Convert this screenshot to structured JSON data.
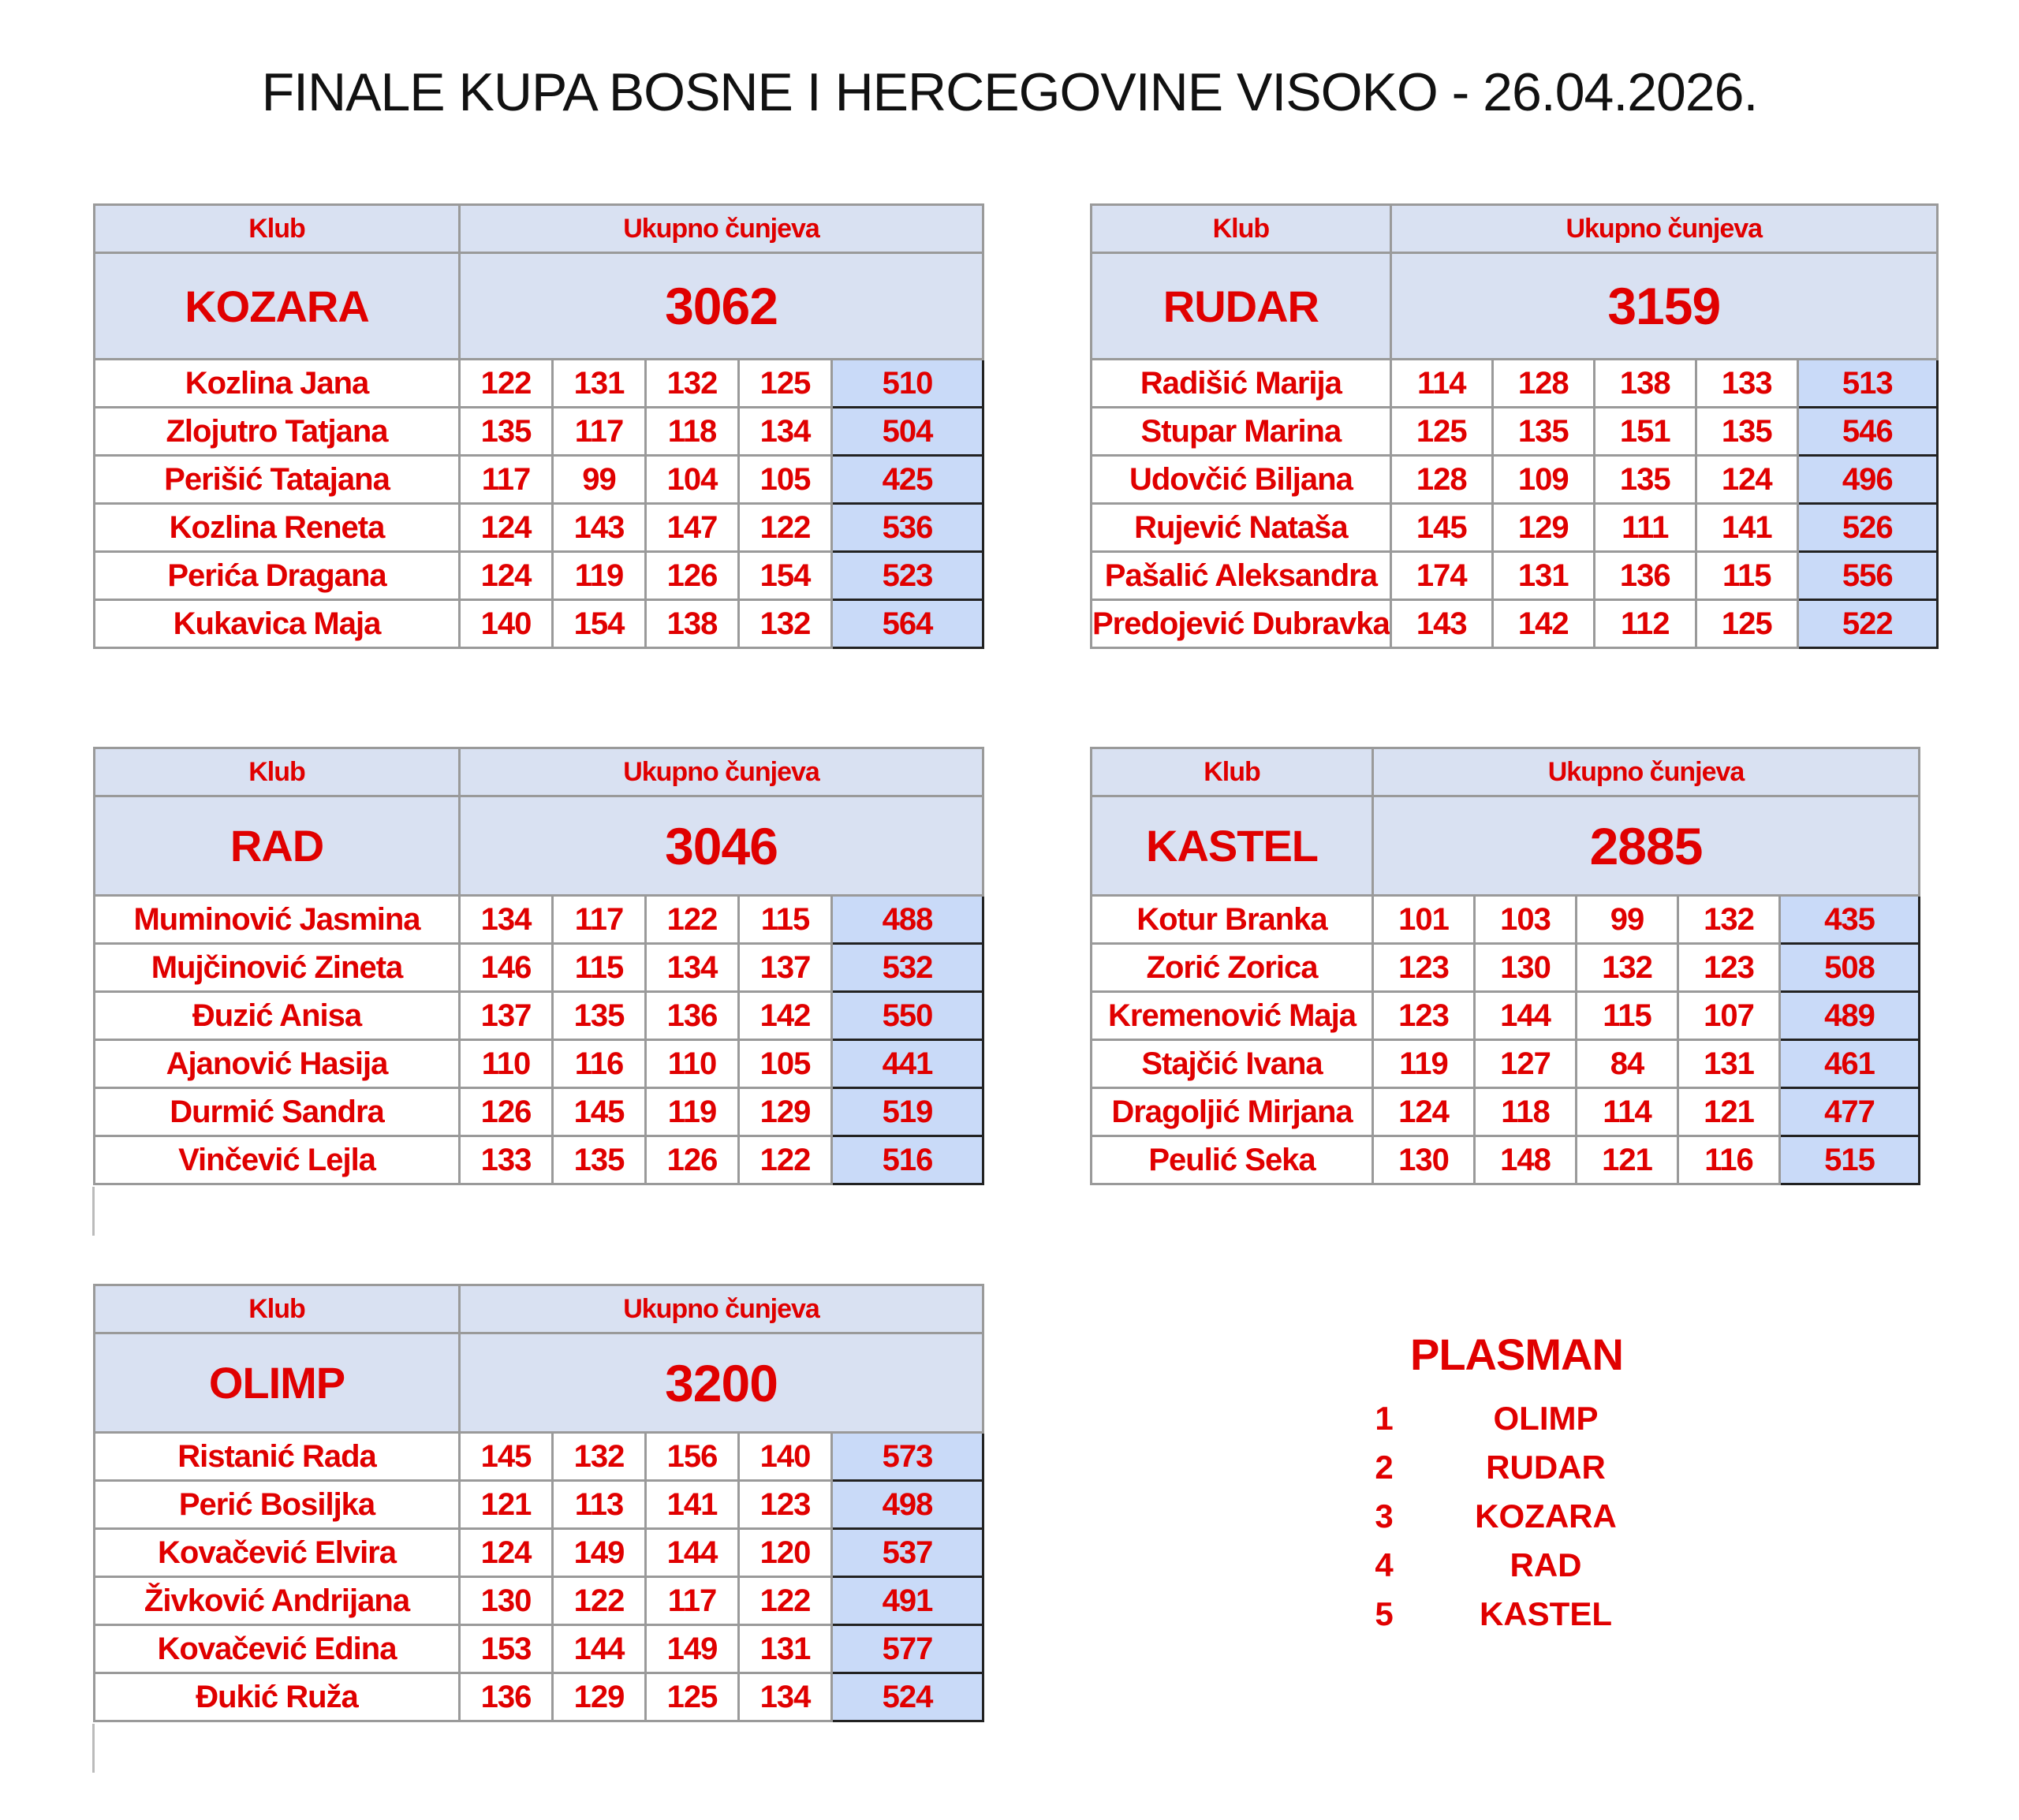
{
  "title": "FINALE KUPA BOSNE I HERCEGOVINE VISOKO - 26.04.2026.",
  "colors": {
    "text": "#e00000",
    "header_bg": "#d9e1f2",
    "total_bg": "#c9daf8"
  },
  "tables": [
    {
      "header_club": "Klub",
      "header_total": "Ukupno čunjeva",
      "club": "KOZARA",
      "total": "3062",
      "players": [
        {
          "name": "Kozlina Jana",
          "scores": [
            "122",
            "131",
            "132",
            "125"
          ],
          "sum": "510"
        },
        {
          "name": "Zlojutro Tatjana",
          "scores": [
            "135",
            "117",
            "118",
            "134"
          ],
          "sum": "504"
        },
        {
          "name": "Perišić Tatajana",
          "scores": [
            "117",
            "99",
            "104",
            "105"
          ],
          "sum": "425"
        },
        {
          "name": "Kozlina Reneta",
          "scores": [
            "124",
            "143",
            "147",
            "122"
          ],
          "sum": "536"
        },
        {
          "name": "Perića Dragana",
          "scores": [
            "124",
            "119",
            "126",
            "154"
          ],
          "sum": "523"
        },
        {
          "name": "Kukavica Maja",
          "scores": [
            "140",
            "154",
            "138",
            "132"
          ],
          "sum": "564"
        }
      ]
    },
    {
      "header_club": "Klub",
      "header_total": "Ukupno čunjeva",
      "club": "RUDAR",
      "total": "3159",
      "players": [
        {
          "name": "Radišić Marija",
          "scores": [
            "114",
            "128",
            "138",
            "133"
          ],
          "sum": "513"
        },
        {
          "name": "Stupar Marina",
          "scores": [
            "125",
            "135",
            "151",
            "135"
          ],
          "sum": "546"
        },
        {
          "name": "Udovčić Biljana",
          "scores": [
            "128",
            "109",
            "135",
            "124"
          ],
          "sum": "496"
        },
        {
          "name": "Rujević Nataša",
          "scores": [
            "145",
            "129",
            "111",
            "141"
          ],
          "sum": "526"
        },
        {
          "name": "Pašalić Aleksandra",
          "scores": [
            "174",
            "131",
            "136",
            "115"
          ],
          "sum": "556"
        },
        {
          "name": "Predojević Dubravka",
          "scores": [
            "143",
            "142",
            "112",
            "125"
          ],
          "sum": "522"
        }
      ]
    },
    {
      "header_club": "Klub",
      "header_total": "Ukupno čunjeva",
      "club": "RAD",
      "total": "3046",
      "players": [
        {
          "name": "Muminović Jasmina",
          "scores": [
            "134",
            "117",
            "122",
            "115"
          ],
          "sum": "488"
        },
        {
          "name": "Mujčinović Zineta",
          "scores": [
            "146",
            "115",
            "134",
            "137"
          ],
          "sum": "532"
        },
        {
          "name": "Đuzić Anisa",
          "scores": [
            "137",
            "135",
            "136",
            "142"
          ],
          "sum": "550"
        },
        {
          "name": "Ajanović Hasija",
          "scores": [
            "110",
            "116",
            "110",
            "105"
          ],
          "sum": "441"
        },
        {
          "name": "Durmić Sandra",
          "scores": [
            "126",
            "145",
            "119",
            "129"
          ],
          "sum": "519"
        },
        {
          "name": "Vinčević Lejla",
          "scores": [
            "133",
            "135",
            "126",
            "122"
          ],
          "sum": "516"
        }
      ]
    },
    {
      "header_club": "Klub",
      "header_total": "Ukupno čunjeva",
      "club": "KASTEL",
      "total": "2885",
      "players": [
        {
          "name": "Kotur Branka",
          "scores": [
            "101",
            "103",
            "99",
            "132"
          ],
          "sum": "435"
        },
        {
          "name": "Zorić Zorica",
          "scores": [
            "123",
            "130",
            "132",
            "123"
          ],
          "sum": "508"
        },
        {
          "name": "Kremenović Maja",
          "scores": [
            "123",
            "144",
            "115",
            "107"
          ],
          "sum": "489"
        },
        {
          "name": "Stajčić Ivana",
          "scores": [
            "119",
            "127",
            "84",
            "131"
          ],
          "sum": "461"
        },
        {
          "name": "Dragoljić Mirjana",
          "scores": [
            "124",
            "118",
            "114",
            "121"
          ],
          "sum": "477"
        },
        {
          "name": "Peulić Seka",
          "scores": [
            "130",
            "148",
            "121",
            "116"
          ],
          "sum": "515"
        }
      ]
    },
    {
      "header_club": "Klub",
      "header_total": "Ukupno čunjeva",
      "club": "OLIMP",
      "total": "3200",
      "players": [
        {
          "name": "Ristanić Rada",
          "scores": [
            "145",
            "132",
            "156",
            "140"
          ],
          "sum": "573"
        },
        {
          "name": "Perić Bosiljka",
          "scores": [
            "121",
            "113",
            "141",
            "123"
          ],
          "sum": "498"
        },
        {
          "name": "Kovačević Elvira",
          "scores": [
            "124",
            "149",
            "144",
            "120"
          ],
          "sum": "537"
        },
        {
          "name": "Živković Andrijana",
          "scores": [
            "130",
            "122",
            "117",
            "122"
          ],
          "sum": "491"
        },
        {
          "name": "Kovačević Edina",
          "scores": [
            "153",
            "144",
            "149",
            "131"
          ],
          "sum": "577"
        },
        {
          "name": "Đukić Ruža",
          "scores": [
            "136",
            "129",
            "125",
            "134"
          ],
          "sum": "524"
        }
      ]
    }
  ],
  "plasman": {
    "title": "PLASMAN",
    "ranks": [
      {
        "place": "1",
        "club": "OLIMP"
      },
      {
        "place": "2",
        "club": "RUDAR"
      },
      {
        "place": "3",
        "club": "KOZARA"
      },
      {
        "place": "4",
        "club": "RAD"
      },
      {
        "place": "5",
        "club": "KASTEL"
      }
    ]
  }
}
